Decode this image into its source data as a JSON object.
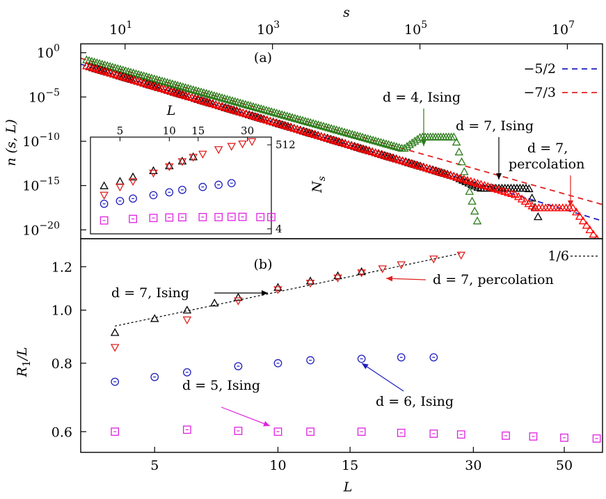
{
  "chart_data": [
    {
      "id": "a",
      "panel_label": "(a)",
      "type": "scatter",
      "xscale": "log",
      "yscale": "log",
      "xlabel": "s",
      "ylabel": "n (s, L)",
      "xlim": [
        2.5,
        30000000
      ],
      "ylim": [
        1e-21,
        10
      ],
      "xticks": [
        {
          "v": 10,
          "b": "10",
          "e": "1"
        },
        {
          "v": 1000,
          "b": "10",
          "e": "3"
        },
        {
          "v": 100000,
          "b": "10",
          "e": "5"
        },
        {
          "v": 10000000,
          "b": "10",
          "e": "7"
        }
      ],
      "yticks": [
        {
          "v": 1,
          "b": "10",
          "e": "0"
        },
        {
          "v": 1e-05,
          "b": "10",
          "e": "−5"
        },
        {
          "v": 1e-10,
          "b": "10",
          "e": "−10"
        },
        {
          "v": 1e-15,
          "b": "10",
          "e": "−15"
        },
        {
          "v": 1e-20,
          "b": "10",
          "e": "−20"
        }
      ],
      "fits": [
        {
          "label": "−5/2",
          "slope": -2.5,
          "color": "#1f1fbf",
          "x0": 2.5,
          "x1": 30000000,
          "amp": 0.5
        },
        {
          "label": "−7/3",
          "slope": -2.3333,
          "color": "#e02020",
          "x0": 2.5,
          "x1": 30000000,
          "amp": 2.0
        }
      ],
      "series": [
        {
          "marker": "triangle-up",
          "color": "#2e7d1c",
          "amp": 2.0,
          "slope": -2.3333,
          "bump_start": 60000,
          "bump_end": 300000,
          "bump_val": 3e-10,
          "cut": 600000,
          "cut_val": 1e-19
        },
        {
          "marker": "triangle-up",
          "color": "#000000",
          "amp": 0.5,
          "slope": -2.5,
          "bump_start": 300000,
          "bump_end": 3000000,
          "bump_val": 5e-16,
          "cut": 4000000,
          "cut_val": 3e-19
        },
        {
          "marker": "triangle-up",
          "color": "#ff0000",
          "amp": 0.5,
          "slope": -2.5,
          "bump_start": 2000000,
          "bump_end": 12000000,
          "bump_val": 3e-18,
          "cut": 25000000,
          "cut_val": 1e-21
        }
      ],
      "annotations": [
        {
          "text": "d = 4, Ising",
          "color": "#2e7d1c"
        },
        {
          "text": "d = 7, Ising",
          "color": "#000000"
        },
        {
          "text": "d = 7,",
          "text2": "percolation",
          "color": "#e02020"
        }
      ]
    },
    {
      "id": "inset",
      "type": "scatter",
      "xscale": "log",
      "yscale": "log",
      "xlabel": "L",
      "ylabel": "N_s",
      "xlim": [
        3.3,
        42
      ],
      "ylim": [
        3,
        800
      ],
      "xticks": [
        {
          "v": 5,
          "t": "5"
        },
        {
          "v": 10,
          "t": "10"
        },
        {
          "v": 15,
          "t": "15"
        },
        {
          "v": 30,
          "t": "30"
        }
      ],
      "yticks": [
        {
          "v": 512,
          "t": "512"
        },
        {
          "v": 4,
          "t": "4"
        }
      ],
      "series": [
        {
          "marker": "triangle-up",
          "color": "#000000",
          "x": [
            4,
            5,
            6,
            8,
            10,
            12,
            14
          ],
          "y": [
            48,
            62,
            80,
            115,
            152,
            200,
            255
          ]
        },
        {
          "marker": "triangle-down",
          "color": "#e02020",
          "x": [
            4,
            5,
            6,
            8,
            10,
            12,
            14,
            16,
            20,
            24,
            28,
            32
          ],
          "y": [
            28,
            45,
            62,
            100,
            145,
            195,
            250,
            300,
            390,
            470,
            540,
            620
          ]
        },
        {
          "marker": "circle",
          "color": "#1f1fbf",
          "x": [
            4,
            5,
            6,
            8,
            10,
            12,
            16,
            20,
            24
          ],
          "y": [
            17,
            20,
            23,
            28,
            33,
            38,
            45,
            51,
            56
          ]
        },
        {
          "marker": "square",
          "color": "#e020e0",
          "x": [
            4,
            6,
            8,
            10,
            12,
            16,
            20,
            24,
            28,
            36,
            42
          ],
          "y": [
            6.5,
            7.1,
            7.5,
            7.7,
            7.8,
            7.9,
            7.9,
            8.0,
            8.0,
            7.9,
            7.9
          ]
        }
      ]
    },
    {
      "id": "b",
      "panel_label": "(b)",
      "type": "scatter",
      "xscale": "log",
      "yscale": "log",
      "xlabel": "L",
      "ylabel": "R₁/L",
      "xlim": [
        3.3,
        62
      ],
      "ylim": [
        0.55,
        1.35
      ],
      "xticks": [
        {
          "v": 5,
          "t": "5"
        },
        {
          "v": 10,
          "t": "10"
        },
        {
          "v": 15,
          "t": "15"
        },
        {
          "v": 30,
          "t": "30"
        },
        {
          "v": 50,
          "t": "50"
        }
      ],
      "yticks": [
        {
          "v": 1.2,
          "t": "1.2"
        },
        {
          "v": 1.0,
          "t": "1.0"
        },
        {
          "v": 0.8,
          "t": "0.8"
        },
        {
          "v": 0.6,
          "t": "0.6"
        }
      ],
      "fit": {
        "label": "1/6",
        "x0": 4,
        "x1": 28,
        "y0": 0.935,
        "y1": 1.27
      },
      "series": [
        {
          "name": "d = 7, Ising",
          "marker": "triangle-up",
          "color": "#000000",
          "x": [
            4,
            5,
            6,
            7,
            8,
            10,
            12,
            14,
            16
          ],
          "y": [
            0.91,
            0.965,
            1.0,
            1.03,
            1.055,
            1.1,
            1.13,
            1.155,
            1.175
          ]
        },
        {
          "name": "d = 7, percolation",
          "marker": "triangle-down",
          "color": "#e02020",
          "x": [
            4,
            6,
            8,
            10,
            12,
            14,
            16,
            18,
            20,
            24,
            28
          ],
          "y": [
            0.855,
            0.96,
            1.04,
            1.09,
            1.12,
            1.145,
            1.17,
            1.19,
            1.21,
            1.24,
            1.26
          ]
        },
        {
          "name": "d = 6, Ising",
          "marker": "circle",
          "color": "#1f1fbf",
          "x": [
            4,
            5,
            6,
            8,
            10,
            12,
            16,
            20,
            24
          ],
          "y": [
            0.74,
            0.755,
            0.77,
            0.79,
            0.8,
            0.81,
            0.815,
            0.82,
            0.82
          ]
        },
        {
          "name": "d = 5, Ising",
          "marker": "square",
          "color": "#e020e0",
          "x": [
            4,
            6,
            8,
            10,
            12,
            16,
            20,
            24,
            28,
            36,
            42,
            50,
            60
          ],
          "y": [
            0.6,
            0.605,
            0.602,
            0.6,
            0.6,
            0.6,
            0.597,
            0.595,
            0.593,
            0.59,
            0.588,
            0.585,
            0.583
          ]
        }
      ],
      "annotations": [
        {
          "text": "d = 7, Ising",
          "color": "#000000"
        },
        {
          "text": "d = 7, percolation",
          "color": "#e02020"
        },
        {
          "text": "d = 6, Ising",
          "color": "#1f1fbf"
        },
        {
          "text": "d = 5, Ising",
          "color": "#e020e0"
        }
      ]
    }
  ]
}
